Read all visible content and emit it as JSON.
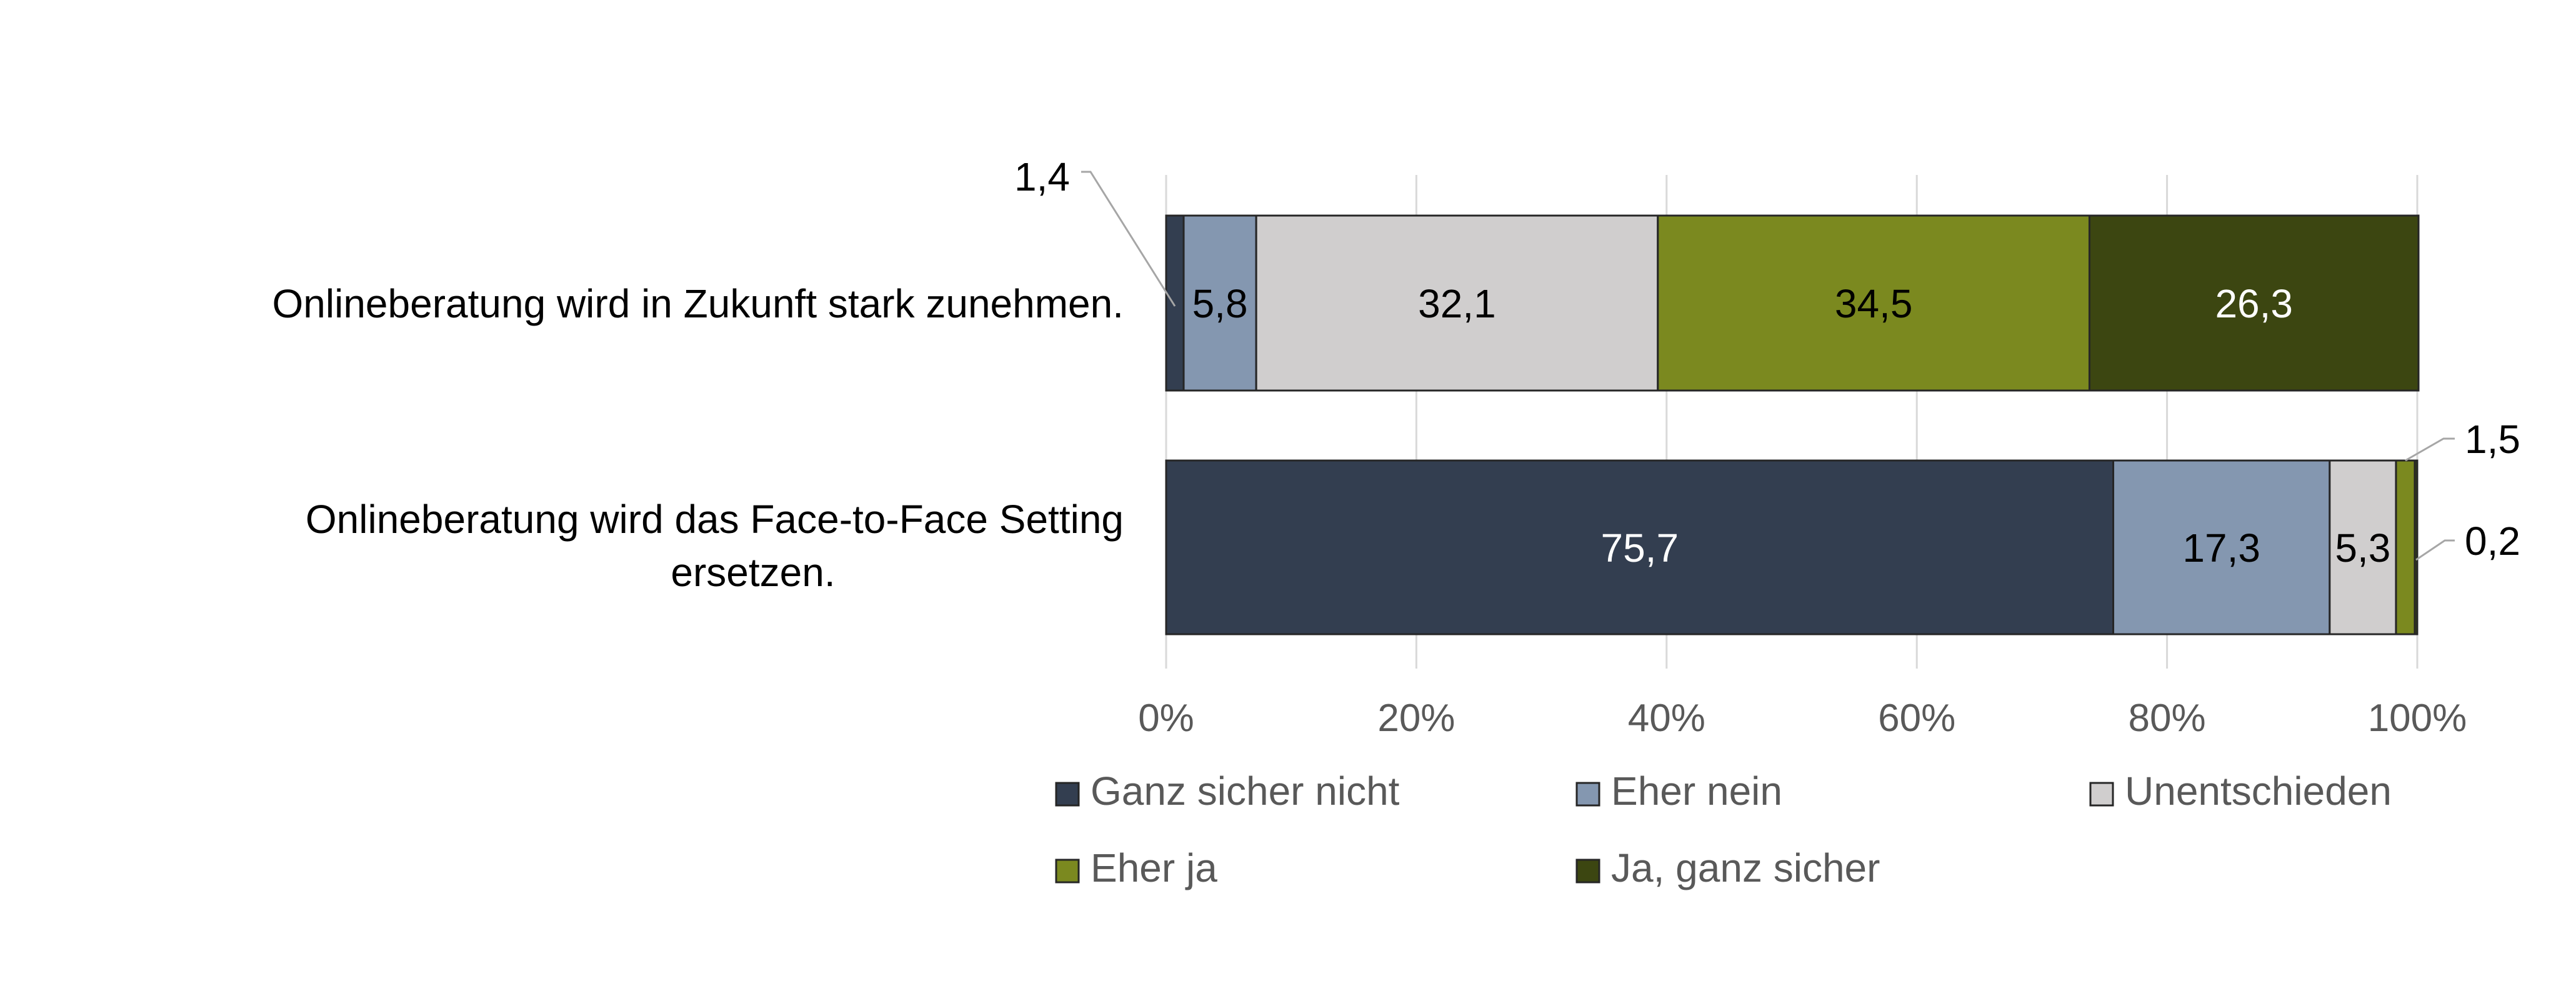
{
  "chart_data": {
    "type": "bar",
    "orientation": "horizontal",
    "stacked": true,
    "percent_stacked": true,
    "categories": [
      "Onlineberatung wird in Zukunft stark zunehmen.",
      "Onlineberatung wird das Face-to-Face Setting ersetzen."
    ],
    "series": [
      {
        "name": "Ganz sicher nicht",
        "color": "#333e50",
        "values": [
          1.4,
          75.7
        ],
        "labels": [
          "1,4",
          "75,7"
        ]
      },
      {
        "name": "Eher nein",
        "color": "#8497b0",
        "values": [
          5.8,
          17.3
        ],
        "labels": [
          "5,8",
          "17,3"
        ]
      },
      {
        "name": "Unentschieden",
        "color": "#d0cece",
        "values": [
          32.1,
          5.3
        ],
        "labels": [
          "32,1",
          "5,3"
        ]
      },
      {
        "name": "Eher ja",
        "color": "#7b891f",
        "values": [
          34.5,
          1.5
        ],
        "labels": [
          "34,5",
          "1,5"
        ]
      },
      {
        "name": "Ja, ganz sicher",
        "color": "#3c4611",
        "values": [
          26.3,
          0.2
        ],
        "labels": [
          "26,3",
          "0,2"
        ]
      }
    ],
    "xlim": [
      0,
      100
    ],
    "x_ticks": [
      "0%",
      "20%",
      "40%",
      "60%",
      "80%",
      "100%"
    ],
    "grid": true,
    "legend_position": "bottom",
    "title": "",
    "xlabel": "",
    "ylabel": ""
  }
}
